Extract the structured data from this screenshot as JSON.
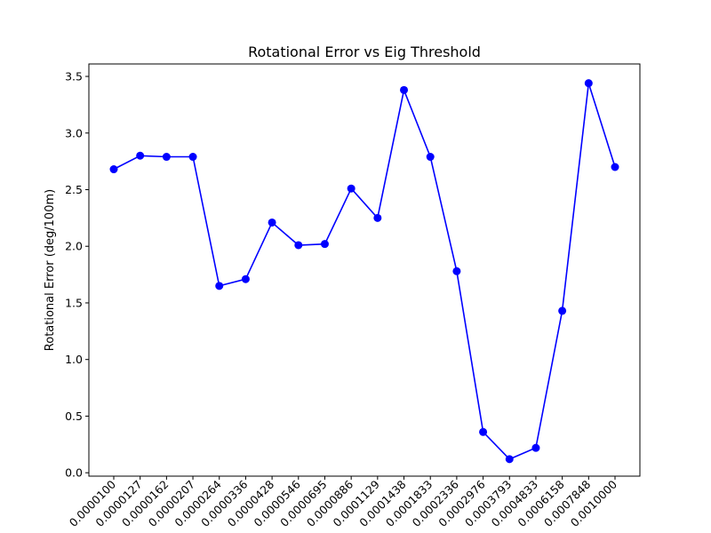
{
  "chart_data": {
    "type": "line",
    "title": "Rotational Error vs Eig Threshold",
    "xlabel": "",
    "ylabel": "Rotational Error (deg/100m)",
    "categories": [
      "0.0000100",
      "0.0000127",
      "0.0000162",
      "0.0000207",
      "0.0000264",
      "0.0000336",
      "0.0000428",
      "0.0000546",
      "0.0000695",
      "0.0000886",
      "0.0001129",
      "0.0001438",
      "0.0001833",
      "0.0002336",
      "0.0002976",
      "0.0003793",
      "0.0004833",
      "0.0006158",
      "0.0007848",
      "0.0010000"
    ],
    "series": [
      {
        "name": "",
        "color": "#0000ff",
        "marker": "circle",
        "values": [
          2.68,
          2.8,
          2.79,
          2.79,
          1.65,
          1.71,
          2.21,
          2.01,
          2.02,
          2.51,
          2.25,
          3.38,
          2.79,
          1.78,
          0.36,
          0.12,
          0.22,
          1.43,
          3.44,
          2.7
        ]
      }
    ],
    "ylim": [
      -0.03,
      3.61
    ],
    "yticks": [
      "0.0",
      "0.5",
      "1.0",
      "1.5",
      "2.0",
      "2.5",
      "3.0",
      "3.5"
    ],
    "ytick_values": [
      0.0,
      0.5,
      1.0,
      1.5,
      2.0,
      2.5,
      3.0,
      3.5
    ],
    "grid": false,
    "legend": "none"
  }
}
